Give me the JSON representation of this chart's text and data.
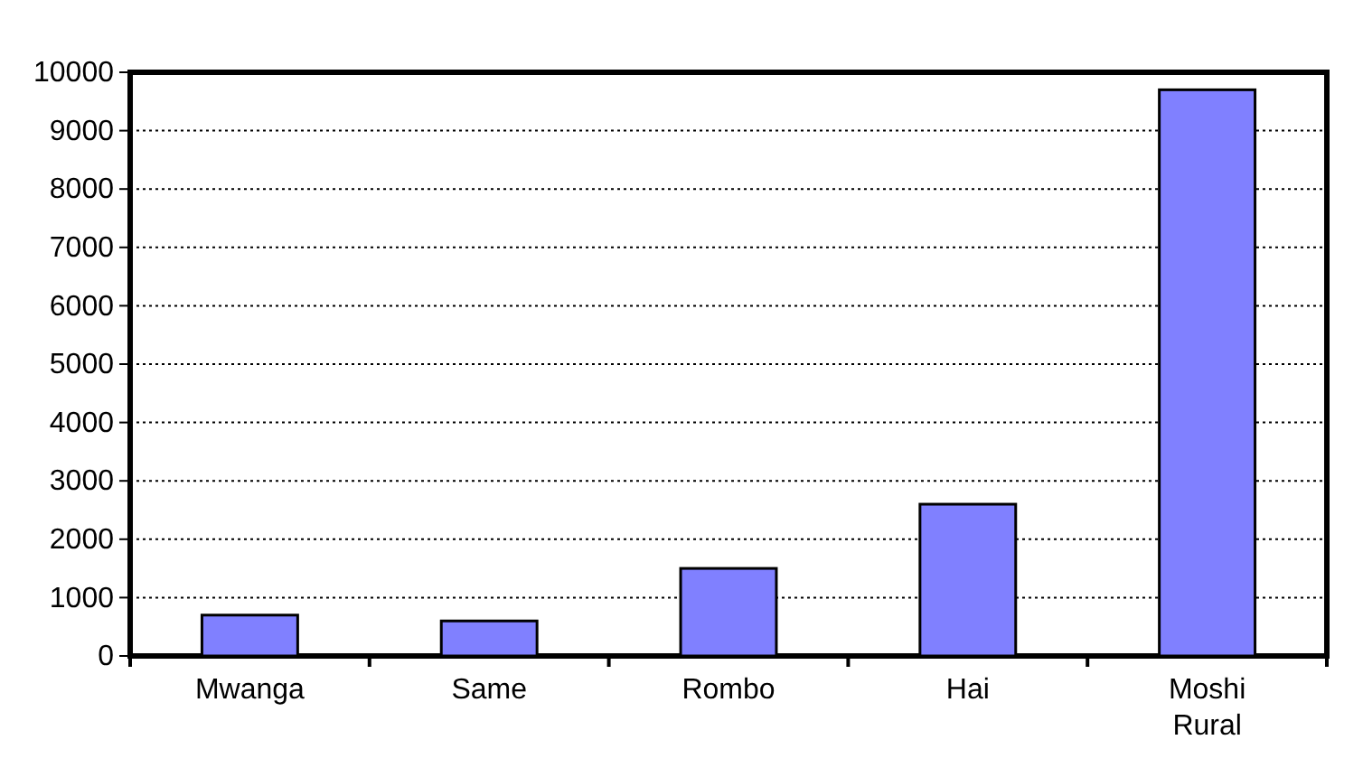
{
  "chart_data": {
    "type": "bar",
    "categories": [
      "Mwanga",
      "Same",
      "Rombo",
      "Hai",
      "Moshi Rural"
    ],
    "values": [
      700,
      600,
      1500,
      2600,
      9700
    ],
    "color": "#8080ff",
    "ylim": [
      0,
      10000
    ],
    "yticks": [
      0,
      1000,
      2000,
      3000,
      4000,
      5000,
      6000,
      7000,
      8000,
      9000,
      10000
    ],
    "grid": "y"
  }
}
